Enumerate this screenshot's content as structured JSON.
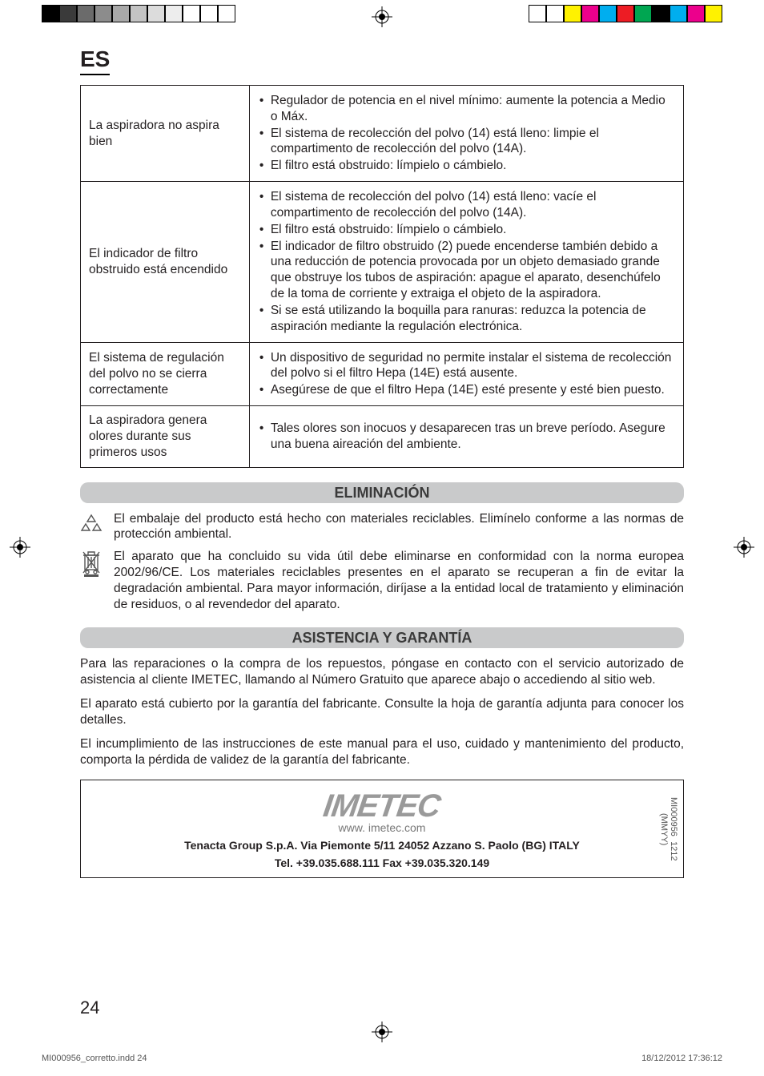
{
  "printmarks": {
    "left_swatches": [
      "#000000",
      "#3a3a3a",
      "#6b6b6b",
      "#8c8c8c",
      "#a8a8a8",
      "#c3c3c3",
      "#dcdcdc",
      "#ededed",
      "#ffffff",
      "#ffffff",
      "#ffffff"
    ],
    "right_swatches": [
      "#ffffff",
      "#ffffff",
      "#fff200",
      "#ec008c",
      "#00aeef",
      "#ed1c24",
      "#00a651",
      "#000000",
      "#00aeef",
      "#ec008c",
      "#fff200"
    ]
  },
  "header": {
    "lang": "ES"
  },
  "table": {
    "rows": [
      {
        "problem": "La aspiradora no aspira bien",
        "solutions": [
          "Regulador de potencia en el nivel mínimo: aumente la potencia a Medio o Máx.",
          "El sistema de recolección del polvo (14) está lleno: limpie el compartimento de recolección del polvo (14A).",
          "El filtro está obstruido: límpielo o cámbielo."
        ]
      },
      {
        "problem": "El indicador de filtro obstruido está encendido",
        "solutions": [
          "El sistema de recolección del polvo (14) está lleno: vacíe el compartimento de recolección del polvo (14A).",
          "El filtro está obstruido: límpielo o cámbielo.",
          "El indicador de filtro obstruido (2) puede encenderse también debido a una reducción de potencia provocada por un objeto demasiado grande que obstruye los tubos de aspiración: apague el aparato, desenchúfelo de la toma de corriente y extraiga el objeto de la aspiradora.",
          "Si se está utilizando la boquilla para ranuras: reduzca la potencia de aspiración mediante la regulación electrónica."
        ]
      },
      {
        "problem": "El sistema de regulación del polvo no se cierra correctamente",
        "solutions": [
          "Un dispositivo de seguridad no permite instalar el sistema de recolección del polvo si el filtro Hepa (14E) está ausente.",
          "Asegúrese de que el filtro Hepa (14E) esté presente y esté bien puesto."
        ]
      },
      {
        "problem": "La aspiradora genera olores durante sus primeros usos",
        "solutions": [
          "Tales olores son inocuos y desaparecen tras un breve período. Asegure una buena aireación del ambiente."
        ]
      }
    ]
  },
  "sections": {
    "eliminacion": {
      "title": "ELIMINACIÓN",
      "p1": "El embalaje del producto está hecho con materiales reciclables. Elimínelo conforme a las normas de protección ambiental.",
      "p2": "El aparato que ha concluido su vida útil debe eliminarse en conformidad con la norma europea 2002/96/CE. Los materiales reciclables presentes en el aparato se recuperan a fin de evitar la degradación ambiental. Para mayor información, diríjase a la entidad local de tratamiento y eliminación de residuos, o al revendedor del aparato."
    },
    "asistencia": {
      "title": "ASISTENCIA Y GARANTÍA",
      "p1": "Para las reparaciones o la compra de los repuestos, póngase en contacto con el servicio autorizado de asistencia al cliente IMETEC, llamando al Número Gratuito que aparece abajo o accediendo al sitio web.",
      "p2": "El aparato está cubierto por la garantía del fabricante. Consulte la hoja de garantía adjunta para conocer los detalles.",
      "p3": "El incumplimiento de las instrucciones de este manual para el uso, cuidado y mantenimiento del producto, comporta la pérdida de validez de la garantía del fabricante."
    }
  },
  "footer": {
    "brand": "IMETEC",
    "www": "www. imetec.com",
    "addr_line1": "Tenacta Group S.p.A.   Via Piemonte 5/11   24052 Azzano S. Paolo (BG)   ITALY",
    "addr_line2": "Tel. +39.035.688.111   Fax +39.035.320.149",
    "code1": "MI000956",
    "code2": "1212 (MMYY)"
  },
  "page_number": "24",
  "print_footer": {
    "left": "MI000956_corretto.indd   24",
    "right": "18/12/2012   17:36:12"
  },
  "colors": {
    "text": "#231f20",
    "bar_bg": "#c9cacb",
    "bar_text": "#3a3a3a",
    "logo": "#9a9a9a",
    "muted": "#777777"
  }
}
